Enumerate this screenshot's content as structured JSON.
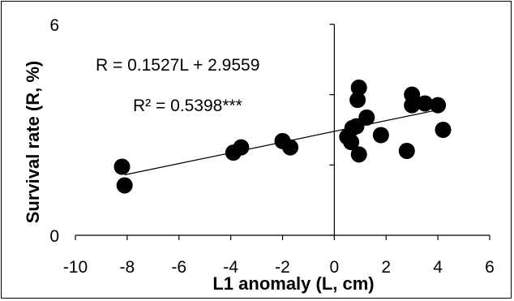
{
  "chart_data": {
    "type": "scatter",
    "title": "",
    "xlabel": "L1 anomaly (L, cm)",
    "ylabel": "Survival rate (R, %)",
    "xlim": [
      -10,
      6
    ],
    "ylim": [
      0,
      6
    ],
    "xticks": [
      -10,
      -8,
      -6,
      -4,
      -2,
      0,
      2,
      4,
      6
    ],
    "yticks": [
      0,
      2,
      4,
      6
    ],
    "yticks_labeled": [
      0,
      6
    ],
    "grid": false,
    "legend": "none",
    "marker_color": "#000000",
    "points": [
      {
        "x": -8.2,
        "y": 1.95
      },
      {
        "x": -8.1,
        "y": 1.42
      },
      {
        "x": -3.9,
        "y": 2.35
      },
      {
        "x": -3.6,
        "y": 2.5
      },
      {
        "x": -2.0,
        "y": 2.68
      },
      {
        "x": -1.7,
        "y": 2.5
      },
      {
        "x": 0.5,
        "y": 2.8
      },
      {
        "x": 0.65,
        "y": 2.65
      },
      {
        "x": 0.7,
        "y": 3.05
      },
      {
        "x": 0.85,
        "y": 3.1
      },
      {
        "x": 0.9,
        "y": 3.85
      },
      {
        "x": 0.95,
        "y": 4.2
      },
      {
        "x": 0.95,
        "y": 2.3
      },
      {
        "x": 1.25,
        "y": 3.35
      },
      {
        "x": 1.8,
        "y": 2.85
      },
      {
        "x": 2.8,
        "y": 2.4
      },
      {
        "x": 3.0,
        "y": 3.7
      },
      {
        "x": 3.0,
        "y": 4.0
      },
      {
        "x": 3.5,
        "y": 3.75
      },
      {
        "x": 4.0,
        "y": 3.7
      },
      {
        "x": 4.2,
        "y": 3.0
      }
    ],
    "trendline": {
      "slope": 0.1527,
      "intercept": 2.9559,
      "x_range": [
        -8.1,
        4.0
      ]
    },
    "annotations": {
      "equation": "R = 0.1527L + 2.9559",
      "r_squared": "R² = 0.5398***"
    }
  }
}
